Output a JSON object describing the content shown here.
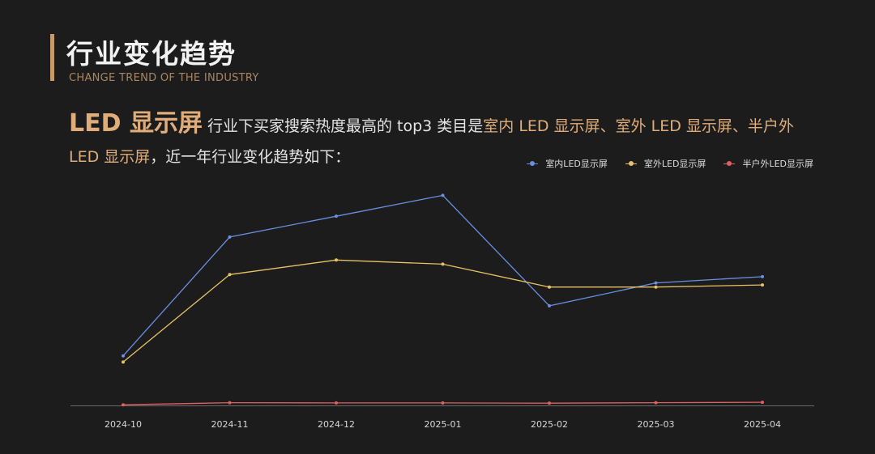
{
  "header": {
    "title": "行业变化趋势",
    "subtitle": "CHANGE TREND OF THE INDUSTRY"
  },
  "description": {
    "lead": "LED 显示屏",
    "text1": "行业下买家搜索热度最高的 top3 类目是",
    "highlight": "室内 LED 显示屏、室外 LED 显示屏、半户外 LED 显示屏",
    "text2": "，近一年行业变化趋势如下："
  },
  "colors": {
    "accent": "#c79a6b",
    "series_indoor": "#6a8fe0",
    "series_outdoor": "#e6c266",
    "series_semi": "#e06060"
  },
  "chart_data": {
    "type": "line",
    "x": [
      "2024-10",
      "2024-11",
      "2024-12",
      "2025-01",
      "2025-02",
      "2025-03",
      "2025-04"
    ],
    "ylim": [
      0,
      100
    ],
    "grid": false,
    "legend_position": "top-right",
    "series": [
      {
        "name": "室内LED显示屏",
        "color": "#6a8fe0",
        "values": [
          24,
          81,
          91,
          101,
          48,
          59,
          62
        ]
      },
      {
        "name": "室外LED显示屏",
        "color": "#e6c266",
        "values": [
          21,
          63,
          70,
          68,
          57,
          57,
          58
        ]
      },
      {
        "name": "半户外LED显示屏",
        "color": "#e06060",
        "values": [
          0.5,
          1.5,
          1.4,
          1.4,
          1.3,
          1.5,
          1.7
        ]
      }
    ]
  }
}
